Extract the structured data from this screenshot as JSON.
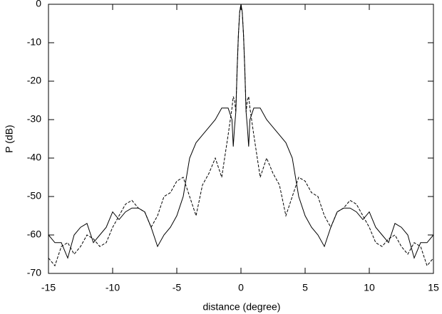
{
  "chart_data": {
    "type": "line",
    "xlabel": "distance (degree)",
    "ylabel": "P (dB)",
    "x": [
      -15,
      -14.5,
      -14,
      -13.5,
      -13,
      -12.5,
      -12,
      -11.5,
      -11,
      -10.5,
      -10,
      -9.5,
      -9,
      -8.5,
      -8,
      -7.5,
      -7,
      -6.5,
      -6,
      -5.5,
      -5,
      -4.5,
      -4,
      -3.5,
      -3,
      -2.5,
      -2,
      -1.5,
      -1,
      -0.7,
      -0.6,
      -0.5,
      -0.4,
      -0.3,
      -0.2,
      -0.1,
      0,
      0.1,
      0.2,
      0.3,
      0.4,
      0.5,
      0.6,
      0.7,
      1,
      1.5,
      2,
      2.5,
      3,
      3.5,
      4,
      4.5,
      5,
      5.5,
      6,
      6.5,
      7,
      7.5,
      8,
      8.5,
      9,
      9.5,
      10,
      10.5,
      11,
      11.5,
      12,
      12.5,
      13,
      13.5,
      14,
      14.5,
      15
    ],
    "series": [
      {
        "color": "#000000",
        "dashed": false,
        "values": [
          -60,
          -62,
          -62,
          -66,
          -60,
          -58,
          -57,
          -62,
          -60,
          -58,
          -54,
          -56,
          -54,
          -53,
          -53,
          -54,
          -58,
          -63,
          -60,
          -58,
          -55,
          -50,
          -40,
          -36,
          -34,
          -32,
          -30,
          -27,
          -27,
          -30,
          -37,
          -32,
          -28,
          -17,
          -8,
          -2,
          0,
          -2,
          -8,
          -17,
          -28,
          -32,
          -37,
          -30,
          -27,
          -27,
          -30,
          -32,
          -34,
          -36,
          -40,
          -50,
          -55,
          -58,
          -60,
          -63,
          -58,
          -54,
          -53,
          -53,
          -54,
          -56,
          -54,
          -58,
          -60,
          -62,
          -57,
          -58,
          -60,
          -66,
          -62,
          -62,
          -60
        ]
      },
      {
        "color": "#000000",
        "dashed": true,
        "values": [
          -66,
          -68,
          -63,
          -62,
          -65,
          -63,
          -60,
          -61,
          -63,
          -62,
          -58,
          -55,
          -52,
          -51,
          -53,
          -54,
          -58,
          -55,
          -50,
          -49,
          -46,
          -45,
          -50,
          -55,
          -47,
          -44,
          -40,
          -45,
          -34,
          -27,
          -24,
          -25,
          -28,
          -17,
          -8,
          -2,
          0,
          -2,
          -8,
          -17,
          -28,
          -25,
          -24,
          -27,
          -34,
          -45,
          -40,
          -44,
          -47,
          -55,
          -50,
          -45,
          -46,
          -49,
          -50,
          -55,
          -58,
          -54,
          -53,
          -51,
          -52,
          -55,
          -58,
          -62,
          -63,
          -61,
          -60,
          -63,
          -65,
          -62,
          -63,
          -68,
          -66
        ]
      }
    ],
    "xlim": [
      -15,
      15
    ],
    "xticks": [
      -15,
      -10,
      -5,
      0,
      5,
      10,
      15
    ],
    "ylim": [
      -70,
      0
    ],
    "yticks": [
      -70,
      -60,
      -50,
      -40,
      -30,
      -20,
      -10,
      0
    ],
    "grid": false
  }
}
